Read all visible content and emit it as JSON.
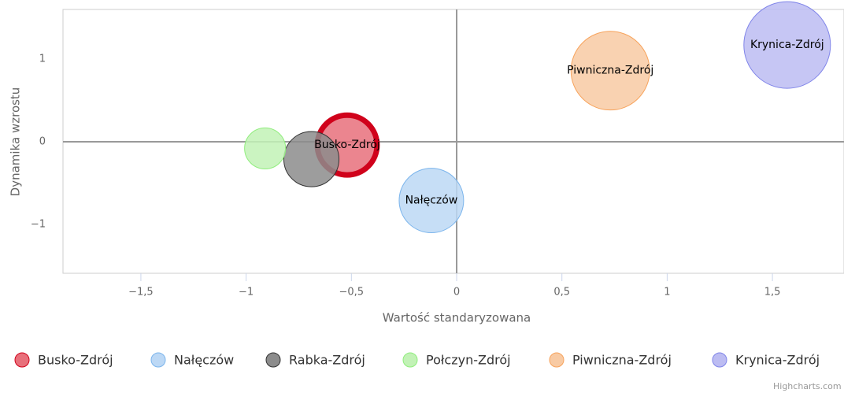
{
  "chart_data": {
    "type": "bubble",
    "x_label": "Wartość standaryzowana",
    "y_label": "Dynamika wzrostu",
    "xlim": [
      -1.87,
      1.84
    ],
    "ylim": [
      -1.59,
      1.6
    ],
    "xticks": [
      {
        "value": -1.5,
        "label": "−1,5"
      },
      {
        "value": -1,
        "label": "−1"
      },
      {
        "value": -0.5,
        "label": "−0,5"
      },
      0,
      {
        "value": 0.5,
        "label": "0,5"
      },
      1,
      {
        "value": 1.5,
        "label": "1,5"
      }
    ],
    "yticks": [
      {
        "value": -1,
        "label": "−1"
      },
      0,
      1
    ],
    "series": [
      {
        "name": "Busko-Zdrój",
        "color": "#e8707b",
        "border": "#d0021b",
        "x": [
          -0.52
        ],
        "y": [
          -0.04
        ],
        "z": [
          14.4
        ],
        "dataLabel": true,
        "selected": true
      },
      {
        "name": "Nałęczów",
        "color": "#bcd8f5",
        "border": "#7cb5ec",
        "x": [
          -0.12
        ],
        "y": [
          -0.71
        ],
        "z": [
          16.8
        ],
        "dataLabel": true
      },
      {
        "name": "Rabka-Zdrój",
        "color": "#8c8c8c",
        "border": "#333333",
        "x": [
          -0.69
        ],
        "y": [
          -0.21
        ],
        "z": [
          12.3
        ],
        "dataLabel": false
      },
      {
        "name": "Połczyn-Zdrój",
        "color": "#c2f2b6",
        "border": "#90ed7d",
        "x": [
          -0.91
        ],
        "y": [
          -0.08
        ],
        "z": [
          6.8
        ],
        "dataLabel": false
      },
      {
        "name": "Piwniczna-Zdrój",
        "color": "#f8caa3",
        "border": "#f7a35c",
        "x": [
          0.73
        ],
        "y": [
          0.86
        ],
        "z": [
          25
        ],
        "dataLabel": true
      },
      {
        "name": "Krynica-Zdrój",
        "color": "#bcbcf2",
        "border": "#8085e9",
        "x": [
          1.57
        ],
        "y": [
          1.17
        ],
        "z": [
          30.3
        ],
        "dataLabel": true
      }
    ],
    "credit": "Highcharts.com"
  }
}
